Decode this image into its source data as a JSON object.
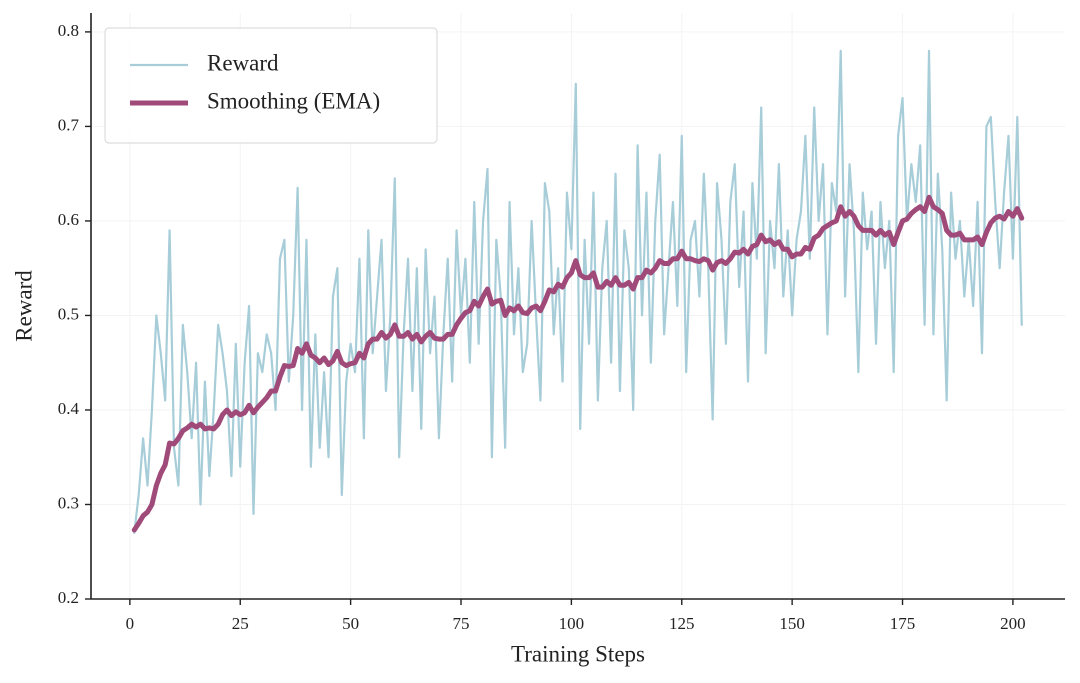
{
  "chart_data": {
    "type": "line",
    "xlabel": "Training Steps",
    "ylabel": "Reward",
    "xlim": [
      -8.8,
      211.8
    ],
    "ylim": [
      0.2,
      0.82
    ],
    "xticks": [
      0,
      25,
      50,
      75,
      100,
      125,
      150,
      175,
      200
    ],
    "yticks": [
      0.2,
      0.3,
      0.4,
      0.5,
      0.6,
      0.7,
      0.8
    ],
    "grid": true,
    "legend": "upper left",
    "x": [
      1,
      2,
      3,
      4,
      5,
      6,
      7,
      8,
      9,
      10,
      11,
      12,
      13,
      14,
      15,
      16,
      17,
      18,
      19,
      20,
      21,
      22,
      23,
      24,
      25,
      26,
      27,
      28,
      29,
      30,
      31,
      32,
      33,
      34,
      35,
      36,
      37,
      38,
      39,
      40,
      41,
      42,
      43,
      44,
      45,
      46,
      47,
      48,
      49,
      50,
      51,
      52,
      53,
      54,
      55,
      56,
      57,
      58,
      59,
      60,
      61,
      62,
      63,
      64,
      65,
      66,
      67,
      68,
      69,
      70,
      71,
      72,
      73,
      74,
      75,
      76,
      77,
      78,
      79,
      80,
      81,
      82,
      83,
      84,
      85,
      86,
      87,
      88,
      89,
      90,
      91,
      92,
      93,
      94,
      95,
      96,
      97,
      98,
      99,
      100,
      101,
      102,
      103,
      104,
      105,
      106,
      107,
      108,
      109,
      110,
      111,
      112,
      113,
      114,
      115,
      116,
      117,
      118,
      119,
      120,
      121,
      122,
      123,
      124,
      125,
      126,
      127,
      128,
      129,
      130,
      131,
      132,
      133,
      134,
      135,
      136,
      137,
      138,
      139,
      140,
      141,
      142,
      143,
      144,
      145,
      146,
      147,
      148,
      149,
      150,
      151,
      152,
      153,
      154,
      155,
      156,
      157,
      158,
      159,
      160,
      161,
      162,
      163,
      164,
      165,
      166,
      167,
      168,
      169,
      170,
      171,
      172,
      173,
      174,
      175,
      176,
      177,
      178,
      179,
      180,
      181,
      182,
      183,
      184,
      185,
      186,
      187,
      188,
      189,
      190,
      191,
      192,
      193,
      194,
      195,
      196,
      197,
      198,
      199,
      200,
      201,
      202
    ],
    "series": [
      {
        "name": "Reward",
        "color": "#a7cdd9",
        "width": 2.2,
        "values": [
          0.27,
          0.31,
          0.37,
          0.32,
          0.4,
          0.5,
          0.46,
          0.41,
          0.59,
          0.36,
          0.32,
          0.49,
          0.44,
          0.37,
          0.45,
          0.3,
          0.43,
          0.33,
          0.4,
          0.49,
          0.46,
          0.42,
          0.33,
          0.47,
          0.34,
          0.45,
          0.51,
          0.29,
          0.46,
          0.44,
          0.48,
          0.46,
          0.4,
          0.56,
          0.58,
          0.43,
          0.5,
          0.635,
          0.4,
          0.58,
          0.34,
          0.48,
          0.36,
          0.44,
          0.35,
          0.52,
          0.55,
          0.31,
          0.43,
          0.47,
          0.44,
          0.56,
          0.37,
          0.59,
          0.46,
          0.52,
          0.58,
          0.42,
          0.5,
          0.645,
          0.35,
          0.48,
          0.56,
          0.42,
          0.55,
          0.38,
          0.57,
          0.46,
          0.52,
          0.37,
          0.48,
          0.56,
          0.43,
          0.59,
          0.5,
          0.56,
          0.45,
          0.62,
          0.47,
          0.6,
          0.655,
          0.35,
          0.58,
          0.52,
          0.36,
          0.62,
          0.48,
          0.55,
          0.44,
          0.47,
          0.6,
          0.5,
          0.41,
          0.64,
          0.61,
          0.48,
          0.55,
          0.43,
          0.63,
          0.57,
          0.745,
          0.38,
          0.58,
          0.47,
          0.63,
          0.41,
          0.55,
          0.6,
          0.45,
          0.65,
          0.42,
          0.59,
          0.55,
          0.4,
          0.68,
          0.5,
          0.63,
          0.45,
          0.6,
          0.67,
          0.48,
          0.55,
          0.62,
          0.51,
          0.69,
          0.44,
          0.58,
          0.6,
          0.52,
          0.65,
          0.55,
          0.39,
          0.64,
          0.58,
          0.47,
          0.62,
          0.66,
          0.53,
          0.61,
          0.43,
          0.64,
          0.56,
          0.72,
          0.46,
          0.6,
          0.55,
          0.66,
          0.52,
          0.59,
          0.5,
          0.58,
          0.61,
          0.69,
          0.56,
          0.72,
          0.6,
          0.66,
          0.48,
          0.64,
          0.61,
          0.78,
          0.52,
          0.66,
          0.59,
          0.44,
          0.63,
          0.57,
          0.61,
          0.47,
          0.62,
          0.55,
          0.6,
          0.44,
          0.69,
          0.73,
          0.6,
          0.66,
          0.62,
          0.68,
          0.49,
          0.78,
          0.48,
          0.65,
          0.57,
          0.41,
          0.63,
          0.56,
          0.6,
          0.52,
          0.58,
          0.51,
          0.62,
          0.46,
          0.7,
          0.71,
          0.62,
          0.55,
          0.63,
          0.69,
          0.56,
          0.71,
          0.49
        ]
      },
      {
        "name": "Smoothing (EMA)",
        "color": "#a04a7a",
        "width": 5,
        "values": [
          0.273,
          0.28,
          0.288,
          0.292,
          0.3,
          0.32,
          0.333,
          0.342,
          0.365,
          0.364,
          0.37,
          0.378,
          0.381,
          0.385,
          0.382,
          0.385,
          0.38,
          0.381,
          0.38,
          0.385,
          0.395,
          0.4,
          0.394,
          0.398,
          0.395,
          0.397,
          0.405,
          0.397,
          0.403,
          0.408,
          0.413,
          0.42,
          0.42,
          0.435,
          0.447,
          0.446,
          0.447,
          0.465,
          0.46,
          0.47,
          0.458,
          0.455,
          0.45,
          0.455,
          0.448,
          0.452,
          0.462,
          0.45,
          0.447,
          0.449,
          0.45,
          0.46,
          0.455,
          0.47,
          0.475,
          0.475,
          0.482,
          0.476,
          0.48,
          0.49,
          0.478,
          0.478,
          0.482,
          0.475,
          0.48,
          0.472,
          0.478,
          0.482,
          0.476,
          0.475,
          0.475,
          0.48,
          0.48,
          0.49,
          0.497,
          0.503,
          0.505,
          0.515,
          0.51,
          0.52,
          0.528,
          0.512,
          0.515,
          0.516,
          0.5,
          0.508,
          0.505,
          0.51,
          0.503,
          0.502,
          0.508,
          0.51,
          0.505,
          0.515,
          0.527,
          0.525,
          0.533,
          0.53,
          0.54,
          0.545,
          0.558,
          0.543,
          0.54,
          0.54,
          0.545,
          0.53,
          0.53,
          0.536,
          0.532,
          0.54,
          0.532,
          0.532,
          0.535,
          0.528,
          0.54,
          0.54,
          0.548,
          0.545,
          0.55,
          0.558,
          0.555,
          0.555,
          0.56,
          0.56,
          0.568,
          0.56,
          0.56,
          0.558,
          0.557,
          0.56,
          0.558,
          0.548,
          0.556,
          0.558,
          0.555,
          0.56,
          0.567,
          0.566,
          0.57,
          0.565,
          0.573,
          0.575,
          0.585,
          0.578,
          0.58,
          0.575,
          0.578,
          0.57,
          0.57,
          0.562,
          0.565,
          0.565,
          0.572,
          0.57,
          0.582,
          0.585,
          0.592,
          0.595,
          0.598,
          0.6,
          0.615,
          0.605,
          0.61,
          0.605,
          0.595,
          0.59,
          0.59,
          0.59,
          0.585,
          0.59,
          0.585,
          0.588,
          0.575,
          0.588,
          0.6,
          0.602,
          0.608,
          0.612,
          0.615,
          0.61,
          0.625,
          0.615,
          0.612,
          0.608,
          0.59,
          0.585,
          0.585,
          0.587,
          0.58,
          0.58,
          0.58,
          0.583,
          0.575,
          0.588,
          0.598,
          0.603,
          0.605,
          0.602,
          0.61,
          0.605,
          0.613,
          0.603
        ]
      }
    ]
  }
}
